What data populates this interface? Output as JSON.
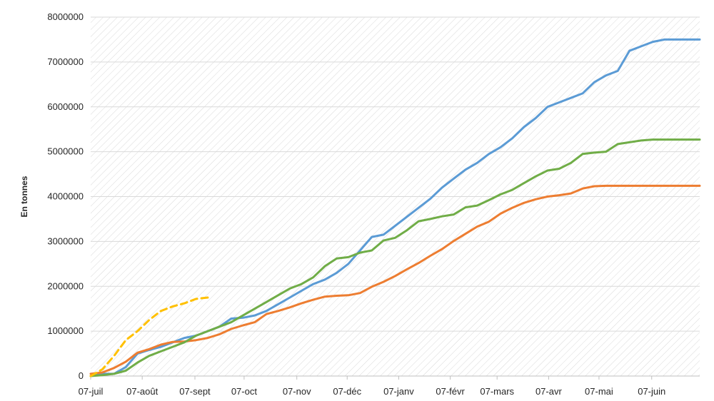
{
  "chart_data": {
    "type": "line",
    "ylabel": "En tonnes",
    "xlabel": "",
    "title": "",
    "ylim": [
      0,
      8000000
    ],
    "yticks": [
      "0",
      "1000000",
      "2000000",
      "3000000",
      "4000000",
      "5000000",
      "6000000",
      "7000000",
      "8000000"
    ],
    "x_range": [
      0,
      52
    ],
    "x_ticks": [
      {
        "label": "07-juil",
        "week": 0
      },
      {
        "label": "07-août",
        "week": 4.4
      },
      {
        "label": "07-sept",
        "week": 8.9
      },
      {
        "label": "07-oct",
        "week": 13.1
      },
      {
        "label": "07-nov",
        "week": 17.6
      },
      {
        "label": "07-déc",
        "week": 21.9
      },
      {
        "label": "07-janv",
        "week": 26.3
      },
      {
        "label": "07-févr",
        "week": 30.7
      },
      {
        "label": "07-mars",
        "week": 34.7
      },
      {
        "label": "07-avr",
        "week": 39.1
      },
      {
        "label": "07-mai",
        "week": 43.4
      },
      {
        "label": "07-juin",
        "week": 47.9
      }
    ],
    "grid": true,
    "legend": "none",
    "series": [
      {
        "color": "#5B9BD5",
        "dash": "solid",
        "x": [
          0,
          1,
          2,
          3,
          4,
          5,
          6,
          7,
          8,
          9,
          10,
          11,
          12,
          13,
          14,
          15,
          16,
          17,
          18,
          19,
          20,
          21,
          22,
          23,
          24,
          25,
          26,
          27,
          28,
          29,
          30,
          31,
          32,
          33,
          34,
          35,
          36,
          37,
          38,
          39,
          40,
          41,
          42,
          43,
          44,
          45,
          46,
          47,
          48,
          49,
          50,
          51,
          52
        ],
        "values": [
          0,
          50000,
          50000,
          200000,
          500000,
          580000,
          650000,
          750000,
          850000,
          900000,
          1000000,
          1100000,
          1280000,
          1300000,
          1350000,
          1450000,
          1600000,
          1750000,
          1900000,
          2050000,
          2150000,
          2300000,
          2500000,
          2800000,
          3100000,
          3150000,
          3350000,
          3550000,
          3750000,
          3950000,
          4200000,
          4400000,
          4600000,
          4750000,
          4950000,
          5100000,
          5300000,
          5550000,
          5750000,
          6000000,
          6100000,
          6200000,
          6300000,
          6550000,
          6700000,
          6800000,
          7250000,
          7350000,
          7450000,
          7500000,
          7500000,
          7500000,
          7500000
        ]
      },
      {
        "color": "#ED7D31",
        "dash": "solid",
        "x": [
          0,
          1,
          2,
          3,
          4,
          5,
          6,
          7,
          8,
          9,
          10,
          11,
          12,
          13,
          14,
          15,
          16,
          17,
          18,
          19,
          20,
          21,
          22,
          23,
          24,
          25,
          26,
          27,
          28,
          29,
          30,
          31,
          32,
          33,
          34,
          35,
          36,
          37,
          38,
          39,
          40,
          41,
          42,
          43,
          44,
          45,
          46,
          47,
          48,
          49,
          50,
          51,
          52
        ],
        "values": [
          50000,
          80000,
          180000,
          320000,
          520000,
          600000,
          700000,
          760000,
          770000,
          800000,
          850000,
          930000,
          1050000,
          1130000,
          1200000,
          1380000,
          1450000,
          1530000,
          1620000,
          1700000,
          1770000,
          1790000,
          1800000,
          1850000,
          1990000,
          2100000,
          2230000,
          2380000,
          2520000,
          2680000,
          2830000,
          3010000,
          3170000,
          3330000,
          3440000,
          3620000,
          3750000,
          3860000,
          3940000,
          4000000,
          4030000,
          4070000,
          4180000,
          4230000,
          4240000,
          4240000,
          4240000,
          4240000,
          4240000,
          4240000,
          4240000,
          4240000,
          4240000
        ]
      },
      {
        "color": "#70AD47",
        "dash": "solid",
        "x": [
          0,
          1,
          2,
          3,
          4,
          5,
          6,
          7,
          8,
          9,
          10,
          11,
          12,
          13,
          14,
          15,
          16,
          17,
          18,
          19,
          20,
          21,
          22,
          23,
          24,
          25,
          26,
          27,
          28,
          29,
          30,
          31,
          32,
          33,
          34,
          35,
          36,
          37,
          38,
          39,
          40,
          41,
          42,
          43,
          44,
          45,
          46,
          47,
          48,
          49,
          50,
          51,
          52
        ],
        "values": [
          0,
          20000,
          50000,
          120000,
          300000,
          450000,
          550000,
          650000,
          750000,
          900000,
          1000000,
          1100000,
          1200000,
          1350000,
          1500000,
          1650000,
          1800000,
          1950000,
          2050000,
          2200000,
          2450000,
          2620000,
          2650000,
          2750000,
          2800000,
          3020000,
          3080000,
          3250000,
          3450000,
          3500000,
          3560000,
          3600000,
          3760000,
          3800000,
          3920000,
          4050000,
          4150000,
          4300000,
          4450000,
          4580000,
          4620000,
          4750000,
          4950000,
          4980000,
          5000000,
          5170000,
          5210000,
          5250000,
          5270000,
          5270000,
          5270000,
          5270000,
          5270000
        ]
      },
      {
        "color": "#FFC000",
        "dash": "dashed",
        "x": [
          0,
          1,
          2,
          3,
          4,
          5,
          6,
          7,
          8,
          9,
          10
        ],
        "values": [
          0,
          150000,
          450000,
          800000,
          1000000,
          1250000,
          1450000,
          1550000,
          1620000,
          1720000,
          1750000
        ]
      }
    ]
  }
}
